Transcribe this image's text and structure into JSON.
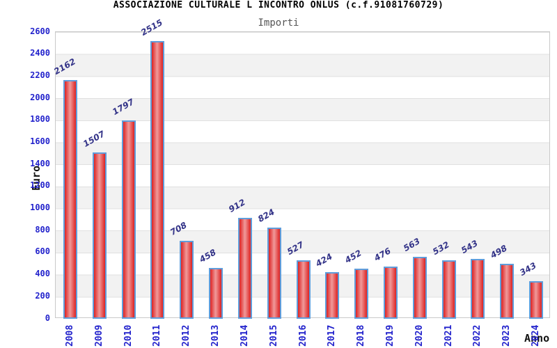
{
  "chart_data": {
    "type": "bar",
    "title": "ASSOCIAZIONE CULTURALE L INCONTRO ONLUS (c.f.91081760729)",
    "subtitle": "Importi",
    "xlabel": "Anno",
    "ylabel": "Euro",
    "categories": [
      "2008",
      "2009",
      "2010",
      "2011",
      "2012",
      "2013",
      "2014",
      "2015",
      "2016",
      "2017",
      "2018",
      "2019",
      "2020",
      "2021",
      "2022",
      "2023",
      "2024"
    ],
    "values": [
      2162,
      1507,
      1797,
      2515,
      708,
      458,
      912,
      824,
      527,
      424,
      452,
      476,
      563,
      532,
      543,
      498,
      343
    ],
    "ylim": [
      0,
      2600
    ],
    "ytick_step": 200,
    "legend": "none",
    "grid": "horizontal bands every 200, alternating white and light gray",
    "value_labels_rotation_deg": -30,
    "category_labels_rotation_deg": -90,
    "colors": {
      "bar_fill_edge": "#dd2222",
      "bar_fill_center": "#f09a9a",
      "bar_border": "#5f9ddb",
      "axis_tick_label": "#2222cc",
      "value_label": "#333388",
      "band_gray": "#f2f2f2",
      "grid_line": "#e0e0e0",
      "plot_border": "#c9c9c9",
      "title": "#000000",
      "subtitle": "#555555"
    }
  }
}
